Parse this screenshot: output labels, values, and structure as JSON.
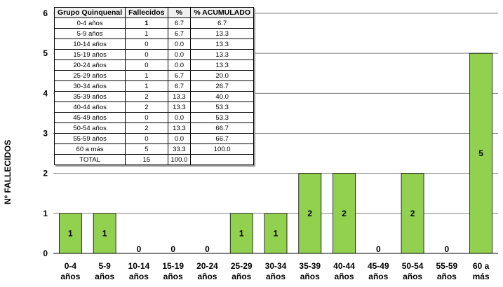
{
  "chart_data": {
    "type": "bar",
    "ylabel": "Nº FALLECIDOS",
    "ylim": [
      0,
      6
    ],
    "yticks": [
      "0",
      "1",
      "2",
      "3",
      "4",
      "5",
      "6"
    ],
    "grid": true,
    "bar_color": "#92d050",
    "categories": [
      [
        "0-4",
        "años"
      ],
      [
        "5-9",
        "años"
      ],
      [
        "10-14",
        "años"
      ],
      [
        "15-19",
        "años"
      ],
      [
        "20-24",
        "años"
      ],
      [
        "25-29",
        "años"
      ],
      [
        "30-34",
        "años"
      ],
      [
        "35-39",
        "años"
      ],
      [
        "40-44",
        "años"
      ],
      [
        "45-49",
        "años"
      ],
      [
        "50-54",
        "años"
      ],
      [
        "55-59",
        "años"
      ],
      [
        "60 a",
        "más"
      ]
    ],
    "values": [
      1,
      1,
      0,
      0,
      0,
      1,
      1,
      2,
      2,
      0,
      2,
      0,
      5
    ],
    "data_labels": [
      "1",
      "1",
      "0",
      "0",
      "0",
      "1",
      "1",
      "2",
      "2",
      "0",
      "2",
      "0",
      "5"
    ]
  },
  "table": {
    "headers": [
      "Grupo Quinquenal",
      "Fallecidos",
      "%",
      "% ACUMULADO"
    ],
    "rows": [
      [
        "0-4 años",
        "1",
        "6.7",
        "6.7"
      ],
      [
        "5-9 años",
        "1",
        "6.7",
        "13.3"
      ],
      [
        "10-14 años",
        "0",
        "0.0",
        "13.3"
      ],
      [
        "15-19 años",
        "0",
        "0.0",
        "13.3"
      ],
      [
        "20-24 años",
        "0",
        "0.0",
        "13.3"
      ],
      [
        "25-29 años",
        "1",
        "6.7",
        "20.0"
      ],
      [
        "30-34 años",
        "1",
        "6.7",
        "26.7"
      ],
      [
        "35-39 años",
        "2",
        "13.3",
        "40.0"
      ],
      [
        "40-44 años",
        "2",
        "13.3",
        "53.3"
      ],
      [
        "45-49 años",
        "0",
        "0.0",
        "53.3"
      ],
      [
        "50-54 años",
        "2",
        "13.3",
        "66.7"
      ],
      [
        "55-59 años",
        "0",
        "0.0",
        "66.7"
      ],
      [
        "60 a más",
        "5",
        "33.3",
        "100.0"
      ],
      [
        "TOTAL",
        "15",
        "100.0",
        ""
      ]
    ]
  }
}
